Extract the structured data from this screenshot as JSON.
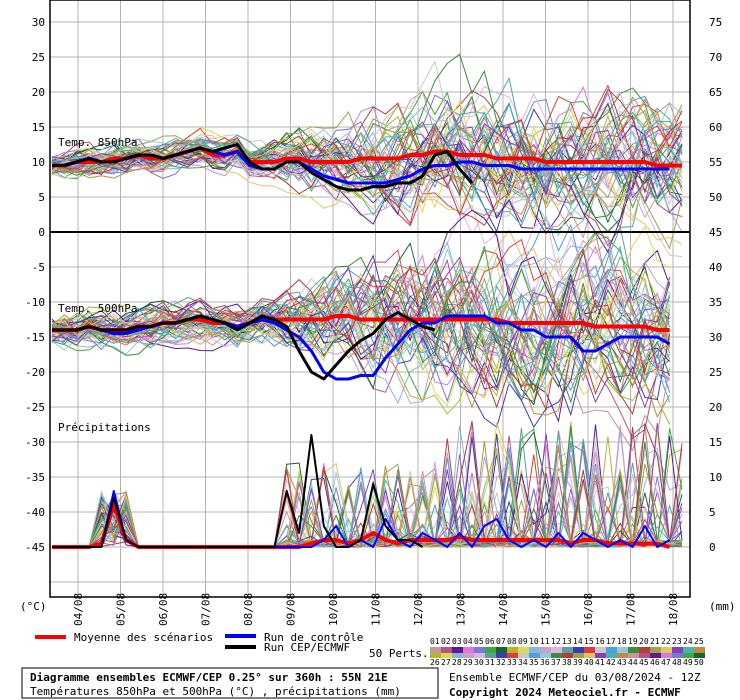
{
  "chart_data": {
    "type": "line",
    "left_axis_ticks": [
      "30",
      "25",
      "20",
      "15",
      "10",
      "5",
      "0",
      "-5",
      "-10",
      "-15",
      "-20",
      "-25",
      "-30",
      "-35",
      "-40",
      "-45"
    ],
    "right_axis_ticks": [
      "75",
      "70",
      "65",
      "60",
      "55",
      "50",
      "45",
      "40",
      "35",
      "30",
      "25",
      "20",
      "15",
      "10",
      "5",
      "0"
    ],
    "left_unit": "(°C)",
    "right_unit": "(mm)",
    "x_labels": [
      "04/08",
      "05/08",
      "06/08",
      "07/08",
      "08/08",
      "09/08",
      "10/08",
      "11/08",
      "12/08",
      "13/08",
      "14/08",
      "15/08",
      "16/08",
      "17/08",
      "18/08"
    ],
    "panels": [
      {
        "label": "Temp. 850hPa"
      },
      {
        "label": "Temp. 500hPa"
      },
      {
        "label": "Précipitations"
      }
    ],
    "series": [
      {
        "name": "Moyenne des scénarios",
        "color": "#ff0000",
        "t850": [
          9.5,
          9.5,
          10,
          10,
          10,
          10.5,
          10.5,
          11,
          10.5,
          10.5,
          11,
          11.5,
          12,
          11,
          11,
          11.5,
          10,
          10,
          10,
          10.5,
          10.5,
          10,
          10,
          10,
          10,
          10.5,
          10.5,
          10.5,
          10.5,
          11,
          11,
          11.5,
          11.5,
          11,
          11,
          11,
          10.5,
          10.5,
          10.5,
          10.5,
          10,
          10,
          10,
          10,
          10,
          10,
          10,
          10,
          10,
          9.5,
          9.5,
          9.5
        ],
        "t500": [
          -14,
          -14,
          -14,
          -13.5,
          -14,
          -14,
          -14,
          -13.5,
          -13.5,
          -13,
          -13,
          -12.5,
          -12.5,
          -13,
          -13,
          -13.5,
          -13,
          -12.5,
          -12.5,
          -12.5,
          -12.5,
          -12.5,
          -12.5,
          -12,
          -12,
          -12.5,
          -12.5,
          -12.5,
          -12.5,
          -12.5,
          -12.5,
          -12.5,
          -12.5,
          -12.5,
          -12.5,
          -12.5,
          -12.5,
          -13,
          -13,
          -13,
          -13,
          -13,
          -13,
          -13,
          -13.5,
          -13.5,
          -13.5,
          -13.5,
          -13.5,
          -14,
          -14
        ],
        "precip": [
          0,
          0,
          0,
          0,
          0.5,
          6,
          1,
          0,
          0,
          0,
          0,
          0,
          0,
          0,
          0,
          0,
          0,
          0,
          0,
          0,
          0,
          0.5,
          1,
          1,
          0.5,
          1,
          2,
          1,
          0.5,
          1,
          1,
          1,
          1,
          1.5,
          1,
          1,
          1,
          1,
          1,
          1,
          1,
          1,
          0.5,
          1,
          1,
          0.5,
          0.5,
          0.5,
          0.5,
          0.5,
          0
        ]
      },
      {
        "name": "Run de contrôle",
        "color": "#0000ff",
        "t850": [
          9.5,
          9.5,
          10,
          10.5,
          10,
          10,
          10.5,
          11,
          11,
          10.5,
          11,
          11.5,
          12,
          11.5,
          11,
          11.5,
          9.5,
          9,
          9,
          10,
          10,
          9,
          8,
          7.5,
          7,
          7,
          7,
          7,
          7.5,
          8,
          9,
          9.5,
          9.5,
          10,
          10,
          9.5,
          9.5,
          9.5,
          9,
          9,
          9,
          9,
          9,
          9,
          9,
          9,
          9,
          9,
          9,
          9,
          9
        ],
        "t500": [
          -14,
          -14,
          -14,
          -13.5,
          -14,
          -14.5,
          -14.5,
          -14,
          -13.5,
          -13,
          -13,
          -12.5,
          -12,
          -12.5,
          -13,
          -13.5,
          -13,
          -12.5,
          -13,
          -14,
          -15,
          -17,
          -20,
          -21,
          -21,
          -20.5,
          -20.5,
          -18,
          -16,
          -14,
          -13,
          -13,
          -12,
          -12,
          -12,
          -12,
          -13,
          -13,
          -14,
          -14,
          -15,
          -15,
          -15,
          -17,
          -17,
          -16,
          -15,
          -15,
          -15,
          -15,
          -16
        ],
        "precip": [
          0,
          0,
          0,
          0,
          0,
          8,
          1,
          0,
          0,
          0,
          0,
          0,
          0,
          0,
          0,
          0,
          0,
          0,
          0,
          0,
          0,
          0,
          1,
          3,
          0,
          1,
          0,
          4,
          1,
          0,
          2,
          1,
          0,
          2,
          0,
          3,
          4,
          1,
          0,
          1,
          0,
          2,
          0,
          2,
          1,
          0,
          1,
          0,
          3,
          0,
          1
        ]
      },
      {
        "name": "Run CEP/ECMWF",
        "color": "#000000",
        "t850": [
          9.5,
          9.5,
          10,
          10.5,
          10,
          10,
          10.5,
          11,
          11,
          10.5,
          11,
          11.5,
          12,
          11.5,
          12,
          12.5,
          10,
          9,
          9,
          10,
          10,
          8.5,
          7.5,
          6.5,
          6,
          6,
          6.5,
          6.5,
          7,
          7,
          8,
          11,
          11.5,
          9,
          7
        ],
        "t500": [
          -14,
          -14,
          -14,
          -13.5,
          -14,
          -14,
          -14,
          -13.5,
          -13.5,
          -13,
          -13,
          -12.5,
          -12,
          -12.5,
          -13,
          -14,
          -13,
          -12,
          -12.5,
          -13.5,
          -17,
          -20,
          -21,
          -19,
          -17,
          -15.5,
          -14.5,
          -12.5,
          -11.5,
          -12.5,
          -13.5,
          -14
        ],
        "precip": [
          0,
          0,
          0,
          0,
          0,
          7,
          1,
          0,
          0,
          0,
          0,
          0,
          0,
          0,
          0,
          0,
          0,
          0,
          0,
          8,
          2,
          16,
          3,
          0,
          0,
          1,
          9,
          3,
          1,
          1,
          0
        ]
      }
    ]
  },
  "legend": {
    "mean_label": "Moyenne des scénarios",
    "control_label": "Run de contrôle",
    "hres_label": "Run CEP/ECMWF",
    "perts_label": "50 Perts.",
    "perts_row1": [
      "01",
      "02",
      "03",
      "04",
      "05",
      "06",
      "07",
      "08",
      "09",
      "10",
      "11",
      "12",
      "13",
      "14",
      "15",
      "16",
      "17",
      "18",
      "19",
      "20",
      "21",
      "22",
      "23",
      "24",
      "25"
    ],
    "perts_row2": [
      "26",
      "27",
      "28",
      "29",
      "30",
      "31",
      "32",
      "33",
      "34",
      "35",
      "36",
      "37",
      "38",
      "39",
      "40",
      "41",
      "42",
      "43",
      "44",
      "45",
      "46",
      "47",
      "48",
      "49",
      "50"
    ],
    "pert_colors": [
      "#c89696",
      "#b4508c",
      "#5a1e8c",
      "#dc78dc",
      "#7878dc",
      "#3caa3c",
      "#1e6432",
      "#b4b432",
      "#dcdc50",
      "#8cb4dc",
      "#c8a0c8",
      "#e0b4e0",
      "#5aa0a0",
      "#3c3cb4",
      "#dc3c3c",
      "#c8c8c8",
      "#50a0dc",
      "#96c8dc",
      "#3c8c3c",
      "#b43c3c",
      "#a0a050",
      "#dcc864",
      "#8c3cb4",
      "#46b4b4",
      "#be8c3c"
    ]
  },
  "footer": {
    "title_line": "Diagramme ensembles ECMWF/CEP 0.25° sur 360h : 55N 21E",
    "sub_line": "Températures 850hPa et 500hPa (°C) , précipitations (mm)",
    "run_line": "Ensemble ECMWF/CEP du 03/08/2024 - 12Z",
    "copyright": "Copyright 2024 Meteociel.fr - ECMWF"
  }
}
